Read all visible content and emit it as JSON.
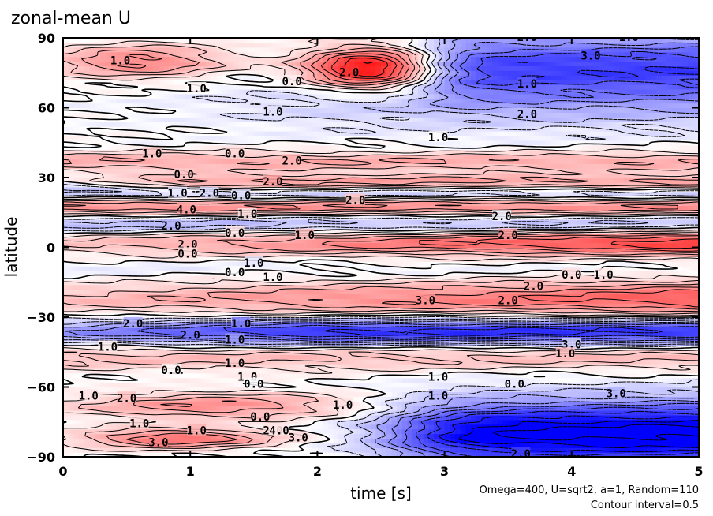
{
  "chart_data": {
    "type": "heatmap",
    "title": "zonal-mean U",
    "xlabel": "time [s]",
    "ylabel": "latitude",
    "xlim": [
      0,
      5
    ],
    "ylim": [
      -90,
      90
    ],
    "x_ticks": [
      0,
      1,
      2,
      3,
      4,
      5
    ],
    "y_ticks": [
      -90,
      -60,
      -30,
      0,
      30,
      60,
      90
    ],
    "x_tick_labels": [
      "0",
      "1",
      "2",
      "3",
      "4",
      "5"
    ],
    "y_tick_labels": [
      "−90",
      "−60",
      "−30",
      "0",
      "30",
      "60",
      "90"
    ],
    "annotations": [
      "Omega=400, U=sqrt2, a=1, Random=110",
      "Contour interval=0.5"
    ],
    "colors": {
      "positive": "#ff0000",
      "negative": "#0000ff",
      "zero": "#ffffff"
    },
    "grid": false,
    "contour_labels": [
      {
        "text": "1.0",
        "t": 0.45,
        "lat": 80
      },
      {
        "text": "2.0",
        "t": 2.25,
        "lat": 75
      },
      {
        "text": "0.0",
        "t": 1.8,
        "lat": 71
      },
      {
        "text": "1.0",
        "t": 1.05,
        "lat": 68
      },
      {
        "text": "1.0",
        "t": 1.65,
        "lat": 58
      },
      {
        "text": "2.0",
        "t": 3.65,
        "lat": 90
      },
      {
        "text": "1.0",
        "t": 4.45,
        "lat": 90
      },
      {
        "text": "3.0",
        "t": 4.15,
        "lat": 82
      },
      {
        "text": "1.0",
        "t": 3.65,
        "lat": 70
      },
      {
        "text": "2.0",
        "t": 3.65,
        "lat": 57
      },
      {
        "text": "1.0",
        "t": 2.95,
        "lat": 47
      },
      {
        "text": "1.0",
        "t": 0.7,
        "lat": 40
      },
      {
        "text": "0.0",
        "t": 1.35,
        "lat": 40
      },
      {
        "text": "2.0",
        "t": 1.8,
        "lat": 37
      },
      {
        "text": "0.0",
        "t": 0.95,
        "lat": 31
      },
      {
        "text": "2.0",
        "t": 1.65,
        "lat": 28
      },
      {
        "text": "1.0",
        "t": 0.9,
        "lat": 23
      },
      {
        "text": "2.0",
        "t": 1.15,
        "lat": 23
      },
      {
        "text": "0.0",
        "t": 1.4,
        "lat": 22
      },
      {
        "text": "2.0",
        "t": 2.3,
        "lat": 20
      },
      {
        "text": "4.0",
        "t": 0.97,
        "lat": 16
      },
      {
        "text": "1.0",
        "t": 1.45,
        "lat": 14
      },
      {
        "text": "2.0",
        "t": 0.85,
        "lat": 9
      },
      {
        "text": "0.0",
        "t": 1.35,
        "lat": 6
      },
      {
        "text": "1.0",
        "t": 1.9,
        "lat": 5
      },
      {
        "text": "2.0",
        "t": 3.45,
        "lat": 13
      },
      {
        "text": "2.0",
        "t": 3.5,
        "lat": 5
      },
      {
        "text": "2.0",
        "t": 0.98,
        "lat": 1
      },
      {
        "text": "0.0",
        "t": 0.98,
        "lat": -3
      },
      {
        "text": "1.0",
        "t": 1.5,
        "lat": -7
      },
      {
        "text": "0.0",
        "t": 1.35,
        "lat": -11
      },
      {
        "text": "1.0",
        "t": 1.65,
        "lat": -13
      },
      {
        "text": "0.0",
        "t": 4.0,
        "lat": -12
      },
      {
        "text": "1.0",
        "t": 4.25,
        "lat": -12
      },
      {
        "text": "2.0",
        "t": 3.7,
        "lat": -17
      },
      {
        "text": "3.0",
        "t": 2.85,
        "lat": -23
      },
      {
        "text": "2.0",
        "t": 3.5,
        "lat": -23
      },
      {
        "text": "2.0",
        "t": 0.55,
        "lat": -33
      },
      {
        "text": "1.0",
        "t": 1.4,
        "lat": -33
      },
      {
        "text": "2.0",
        "t": 1.0,
        "lat": -38
      },
      {
        "text": "1.0",
        "t": 1.35,
        "lat": -40
      },
      {
        "text": "1.0",
        "t": 0.35,
        "lat": -43
      },
      {
        "text": "3.0",
        "t": 4.0,
        "lat": -42
      },
      {
        "text": "1.0",
        "t": 3.95,
        "lat": -46
      },
      {
        "text": "1.0",
        "t": 1.35,
        "lat": -50
      },
      {
        "text": "0.0",
        "t": 0.85,
        "lat": -53
      },
      {
        "text": "1.0",
        "t": 1.45,
        "lat": -56
      },
      {
        "text": "0.0",
        "t": 1.5,
        "lat": -59
      },
      {
        "text": "1.0",
        "t": 2.95,
        "lat": -56
      },
      {
        "text": "0.0",
        "t": 3.55,
        "lat": -59
      },
      {
        "text": "1.0",
        "t": 0.2,
        "lat": -64
      },
      {
        "text": "2.0",
        "t": 0.5,
        "lat": -65
      },
      {
        "text": "1.0",
        "t": 2.95,
        "lat": -64
      },
      {
        "text": "1.0",
        "t": 2.2,
        "lat": -68
      },
      {
        "text": "1.0",
        "t": 0.6,
        "lat": -76
      },
      {
        "text": "0.0",
        "t": 1.55,
        "lat": -73
      },
      {
        "text": "1.0",
        "t": 1.05,
        "lat": -79
      },
      {
        "text": "3.0",
        "t": 0.75,
        "lat": -84
      },
      {
        "text": "2.0",
        "t": 1.65,
        "lat": -79
      },
      {
        "text": "3.0",
        "t": 1.85,
        "lat": -82
      },
      {
        "text": "4.0",
        "t": 1.7,
        "lat": -79
      },
      {
        "text": "3.0",
        "t": 4.35,
        "lat": -63
      },
      {
        "text": "2.0",
        "t": 3.6,
        "lat": -89
      }
    ]
  }
}
